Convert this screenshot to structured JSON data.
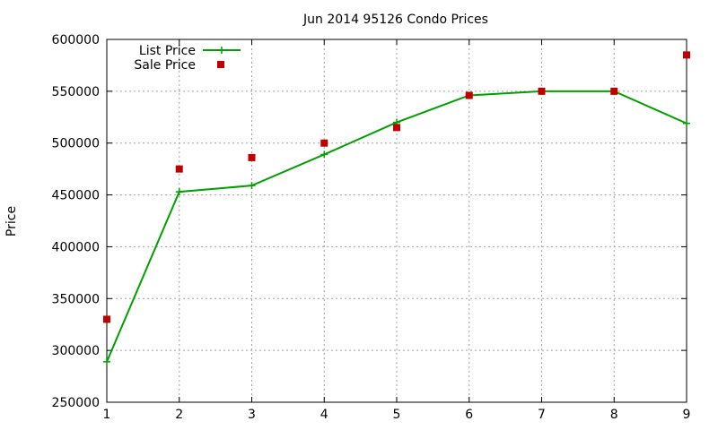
{
  "chart_data": {
    "type": "line",
    "title": "Jun 2014 95126 Condo Prices",
    "xlabel": "",
    "ylabel": "Price",
    "x": [
      1,
      2,
      3,
      4,
      5,
      6,
      7,
      8,
      9
    ],
    "xlim": [
      1,
      9
    ],
    "ylim": [
      250000,
      600000
    ],
    "xticks": [
      "1",
      "2",
      "3",
      "4",
      "5",
      "6",
      "7",
      "8",
      "9"
    ],
    "yticks": [
      "250000",
      "300000",
      "350000",
      "400000",
      "450000",
      "500000",
      "550000",
      "600000"
    ],
    "grid": true,
    "legend_position": "top-left",
    "series": [
      {
        "name": "List Price",
        "style": "line-plus",
        "color": "#00a000",
        "values": [
          289000,
          453000,
          459000,
          489000,
          520000,
          546000,
          550000,
          550000,
          519000
        ]
      },
      {
        "name": "Sale Price",
        "style": "square-points",
        "color": "#c00000",
        "values": [
          330000,
          475000,
          486000,
          500000,
          515000,
          546000,
          550000,
          550000,
          585000
        ]
      }
    ]
  }
}
